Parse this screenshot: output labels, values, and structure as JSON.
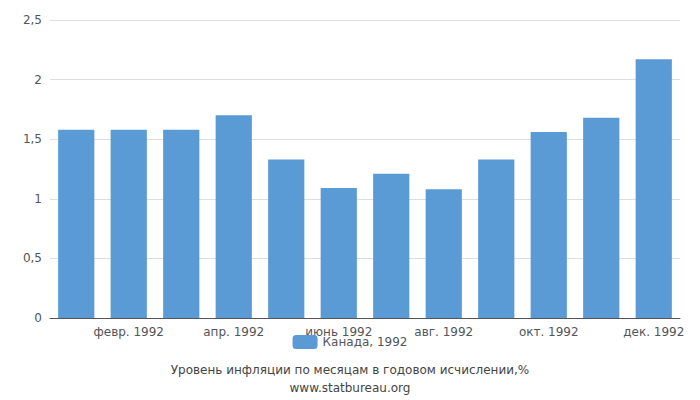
{
  "chart_data": {
    "type": "bar",
    "categories": [
      null,
      "февр. 1992",
      null,
      "апр. 1992",
      null,
      "июнь 1992",
      null,
      "авг. 1992",
      null,
      "окт. 1992",
      null,
      "дек. 1992"
    ],
    "series": [
      {
        "name": "Канада, 1992",
        "color": "#5B9BD5",
        "values": [
          1.58,
          1.58,
          1.58,
          1.7,
          1.33,
          1.09,
          1.21,
          1.08,
          1.33,
          1.56,
          1.68,
          2.17
        ]
      }
    ],
    "ylim": [
      0,
      2.5
    ],
    "yticks": [
      0,
      {
        "value": 0.5,
        "label": "0,5"
      },
      1,
      {
        "value": 1.5,
        "label": "1,5"
      },
      2,
      {
        "value": 2.5,
        "label": "2,5"
      }
    ],
    "xlabel": "Уровень инфляции по месяцам в годовом исчислении,%",
    "annotations": [
      "www.statbureau.org"
    ],
    "legend": "bottom",
    "grid": true
  }
}
